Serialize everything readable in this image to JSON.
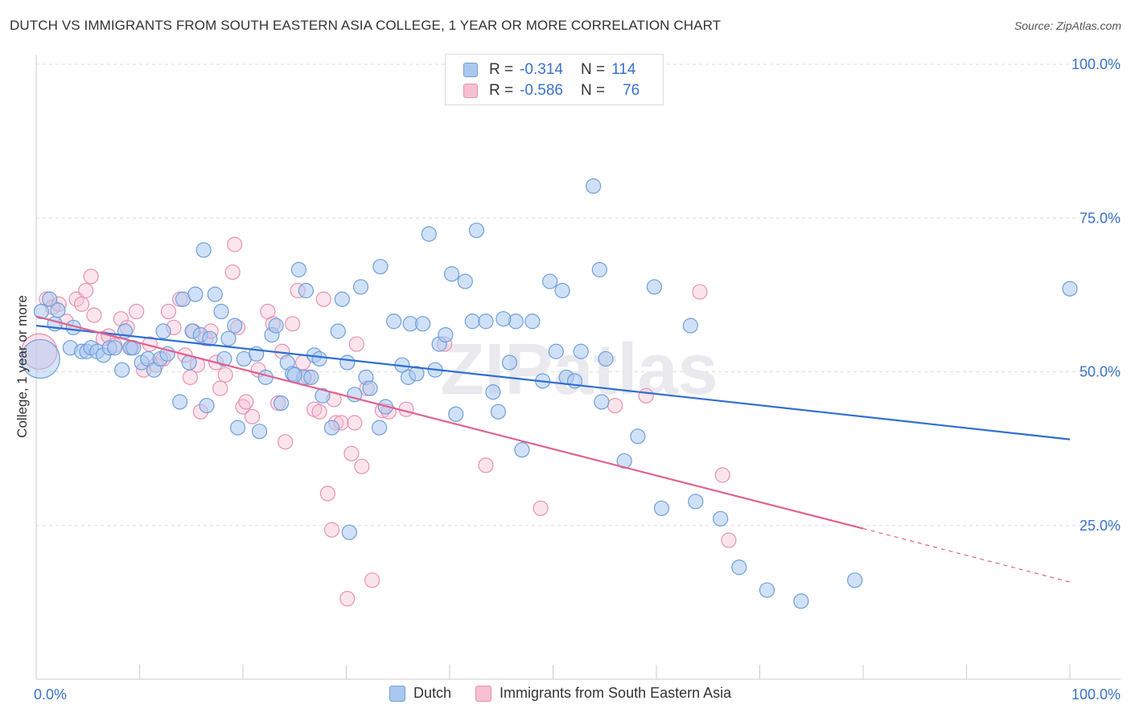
{
  "title": "DUTCH VS IMMIGRANTS FROM SOUTH EASTERN ASIA COLLEGE, 1 YEAR OR MORE CORRELATION CHART",
  "source": "Source: ZipAtlas.com",
  "watermark": "ZIPatlas",
  "colors": {
    "dutch_fill": "#a9c8f0",
    "dutch_stroke": "#6f9fdb",
    "dutch_line": "#2f6fd0",
    "sea_fill": "#f6bfd2",
    "sea_stroke": "#e892b0",
    "sea_line": "#e0628f",
    "axis_text": "#3a72c8",
    "grid": "#dddddd"
  },
  "legend_top": {
    "rows": [
      {
        "r_label": "R =",
        "r_value": "-0.314",
        "n_label": "N =",
        "n_value": "114"
      },
      {
        "r_label": "R =",
        "r_value": "-0.586",
        "n_label": "N =",
        "n_value": "76"
      }
    ]
  },
  "legend_bottom": [
    {
      "label": "Dutch"
    },
    {
      "label": "Immigrants from South Eastern Asia"
    }
  ],
  "chart_data": {
    "type": "scatter",
    "title": "DUTCH VS IMMIGRANTS FROM SOUTH EASTERN ASIA COLLEGE, 1 YEAR OR MORE CORRELATION CHART",
    "xlabel": "",
    "ylabel": "College, 1 year or more",
    "xlim": [
      0,
      100
    ],
    "ylim": [
      0,
      100
    ],
    "x_tick_labels": [
      "0.0%",
      "100.0%"
    ],
    "y_tick_labels": [
      "25.0%",
      "50.0%",
      "75.0%",
      "100.0%"
    ],
    "y_ticks": [
      25,
      50,
      75,
      100
    ],
    "grid": true,
    "legend_position": "top-center",
    "series": [
      {
        "name": "Dutch",
        "trendline": {
          "x": [
            0,
            100
          ],
          "y": [
            57.5,
            39.0
          ],
          "dashed_from": null
        },
        "points": [
          [
            0.4,
            52.1
          ],
          [
            0.5,
            59.8
          ],
          [
            1.3,
            61.8
          ],
          [
            1.8,
            57.8
          ],
          [
            2.1,
            60.0
          ],
          [
            3.3,
            53.9
          ],
          [
            3.6,
            57.2
          ],
          [
            4.4,
            53.3
          ],
          [
            4.9,
            53.3
          ],
          [
            5.3,
            53.9
          ],
          [
            5.9,
            53.3
          ],
          [
            6.5,
            52.7
          ],
          [
            7.1,
            53.9
          ],
          [
            8.3,
            50.3
          ],
          [
            8.6,
            56.6
          ],
          [
            9.1,
            53.9
          ],
          [
            9.4,
            53.9
          ],
          [
            10.2,
            51.5
          ],
          [
            10.8,
            52.1
          ],
          [
            11.4,
            50.3
          ],
          [
            12.0,
            52.1
          ],
          [
            12.3,
            56.6
          ],
          [
            13.9,
            45.1
          ],
          [
            14.2,
            61.8
          ],
          [
            14.8,
            51.5
          ],
          [
            15.1,
            56.6
          ],
          [
            15.4,
            62.6
          ],
          [
            15.9,
            56.0
          ],
          [
            16.2,
            69.8
          ],
          [
            16.5,
            44.5
          ],
          [
            16.8,
            55.4
          ],
          [
            17.3,
            62.6
          ],
          [
            17.9,
            59.8
          ],
          [
            18.6,
            55.4
          ],
          [
            19.2,
            57.5
          ],
          [
            19.5,
            40.9
          ],
          [
            20.1,
            52.1
          ],
          [
            21.3,
            52.9
          ],
          [
            21.6,
            40.3
          ],
          [
            22.2,
            49.1
          ],
          [
            22.8,
            56.0
          ],
          [
            23.2,
            57.5
          ],
          [
            23.7,
            44.9
          ],
          [
            24.3,
            51.5
          ],
          [
            24.8,
            49.7
          ],
          [
            25.4,
            66.6
          ],
          [
            25.9,
            49.1
          ],
          [
            26.1,
            63.2
          ],
          [
            26.6,
            49.1
          ],
          [
            26.9,
            52.7
          ],
          [
            27.4,
            52.1
          ],
          [
            27.7,
            46.1
          ],
          [
            28.6,
            40.9
          ],
          [
            29.2,
            56.6
          ],
          [
            29.6,
            61.8
          ],
          [
            30.1,
            51.5
          ],
          [
            30.8,
            46.3
          ],
          [
            31.4,
            63.8
          ],
          [
            31.9,
            49.1
          ],
          [
            32.3,
            47.3
          ],
          [
            33.2,
            40.9
          ],
          [
            33.3,
            67.1
          ],
          [
            33.8,
            44.3
          ],
          [
            34.6,
            58.2
          ],
          [
            35.4,
            51.1
          ],
          [
            36.0,
            49.1
          ],
          [
            36.2,
            57.8
          ],
          [
            37.4,
            57.8
          ],
          [
            38.0,
            72.4
          ],
          [
            38.6,
            50.3
          ],
          [
            39.0,
            54.5
          ],
          [
            39.6,
            56.0
          ],
          [
            40.2,
            65.9
          ],
          [
            40.6,
            43.1
          ],
          [
            41.5,
            64.7
          ],
          [
            42.2,
            58.2
          ],
          [
            42.6,
            73.0
          ],
          [
            43.5,
            58.2
          ],
          [
            44.2,
            46.7
          ],
          [
            44.7,
            43.5
          ],
          [
            45.8,
            51.5
          ],
          [
            46.4,
            58.2
          ],
          [
            47.0,
            37.3
          ],
          [
            48.0,
            58.2
          ],
          [
            49.0,
            48.5
          ],
          [
            49.7,
            64.7
          ],
          [
            50.3,
            53.3
          ],
          [
            50.9,
            63.2
          ],
          [
            51.3,
            49.1
          ],
          [
            52.1,
            48.5
          ],
          [
            52.7,
            53.3
          ],
          [
            53.9,
            80.2
          ],
          [
            54.5,
            66.6
          ],
          [
            54.7,
            45.1
          ],
          [
            55.1,
            52.1
          ],
          [
            56.9,
            35.5
          ],
          [
            58.2,
            39.5
          ],
          [
            59.8,
            63.8
          ],
          [
            60.5,
            27.8
          ],
          [
            63.3,
            57.5
          ],
          [
            63.8,
            28.9
          ],
          [
            66.2,
            26.1
          ],
          [
            68.0,
            18.2
          ],
          [
            70.7,
            14.5
          ],
          [
            74.0,
            12.7
          ],
          [
            79.2,
            16.1
          ],
          [
            100.0,
            63.5
          ],
          [
            30.3,
            23.9
          ],
          [
            12.7,
            52.9
          ],
          [
            7.6,
            53.9
          ],
          [
            18.2,
            52.1
          ],
          [
            25.0,
            49.5
          ],
          [
            36.8,
            49.7
          ],
          [
            45.2,
            58.6
          ]
        ]
      },
      {
        "name": "Immigrants from South Eastern Asia",
        "trendline": {
          "x": [
            0,
            80
          ],
          "y": [
            59.0,
            24.5
          ],
          "dashed_to_x": 100,
          "dashed_to_y": 15.8
        },
        "points": [
          [
            0.3,
            53.3
          ],
          [
            1.0,
            61.8
          ],
          [
            1.6,
            60.5
          ],
          [
            2.2,
            61.0
          ],
          [
            2.9,
            58.2
          ],
          [
            3.9,
            61.8
          ],
          [
            4.4,
            61.0
          ],
          [
            4.8,
            63.2
          ],
          [
            5.3,
            65.5
          ],
          [
            5.6,
            59.2
          ],
          [
            6.5,
            55.4
          ],
          [
            7.0,
            55.8
          ],
          [
            7.6,
            54.3
          ],
          [
            8.2,
            58.6
          ],
          [
            8.8,
            57.2
          ],
          [
            9.7,
            59.8
          ],
          [
            10.4,
            50.3
          ],
          [
            11.0,
            54.5
          ],
          [
            11.6,
            51.1
          ],
          [
            12.3,
            52.1
          ],
          [
            12.8,
            59.8
          ],
          [
            13.3,
            57.2
          ],
          [
            13.9,
            61.8
          ],
          [
            14.4,
            52.7
          ],
          [
            14.9,
            49.1
          ],
          [
            15.2,
            56.6
          ],
          [
            15.6,
            51.1
          ],
          [
            15.9,
            43.5
          ],
          [
            16.4,
            55.4
          ],
          [
            16.9,
            56.6
          ],
          [
            17.4,
            51.5
          ],
          [
            17.8,
            47.3
          ],
          [
            18.3,
            49.5
          ],
          [
            19.0,
            66.2
          ],
          [
            19.2,
            70.7
          ],
          [
            19.5,
            57.2
          ],
          [
            20.0,
            44.3
          ],
          [
            20.3,
            45.1
          ],
          [
            20.9,
            42.7
          ],
          [
            21.5,
            50.3
          ],
          [
            22.4,
            59.8
          ],
          [
            22.9,
            57.8
          ],
          [
            23.4,
            44.9
          ],
          [
            23.8,
            53.3
          ],
          [
            24.1,
            38.6
          ],
          [
            24.8,
            57.8
          ],
          [
            25.3,
            63.2
          ],
          [
            25.8,
            51.5
          ],
          [
            26.3,
            49.1
          ],
          [
            26.9,
            43.9
          ],
          [
            27.4,
            43.5
          ],
          [
            27.8,
            61.8
          ],
          [
            28.2,
            30.2
          ],
          [
            28.6,
            24.3
          ],
          [
            29.0,
            41.7
          ],
          [
            29.5,
            41.7
          ],
          [
            30.1,
            13.1
          ],
          [
            30.5,
            36.7
          ],
          [
            31.0,
            54.5
          ],
          [
            31.5,
            34.6
          ],
          [
            32.0,
            47.3
          ],
          [
            32.5,
            16.1
          ],
          [
            33.5,
            43.7
          ],
          [
            34.1,
            43.5
          ],
          [
            35.8,
            43.9
          ],
          [
            39.5,
            54.5
          ],
          [
            43.5,
            34.8
          ],
          [
            48.8,
            27.8
          ],
          [
            59.0,
            46.1
          ],
          [
            64.2,
            63.0
          ],
          [
            66.4,
            33.2
          ],
          [
            67.0,
            22.6
          ],
          [
            56.0,
            44.5
          ],
          [
            30.8,
            41.7
          ],
          [
            28.8,
            45.5
          ],
          [
            9.2,
            53.9
          ]
        ]
      }
    ]
  }
}
